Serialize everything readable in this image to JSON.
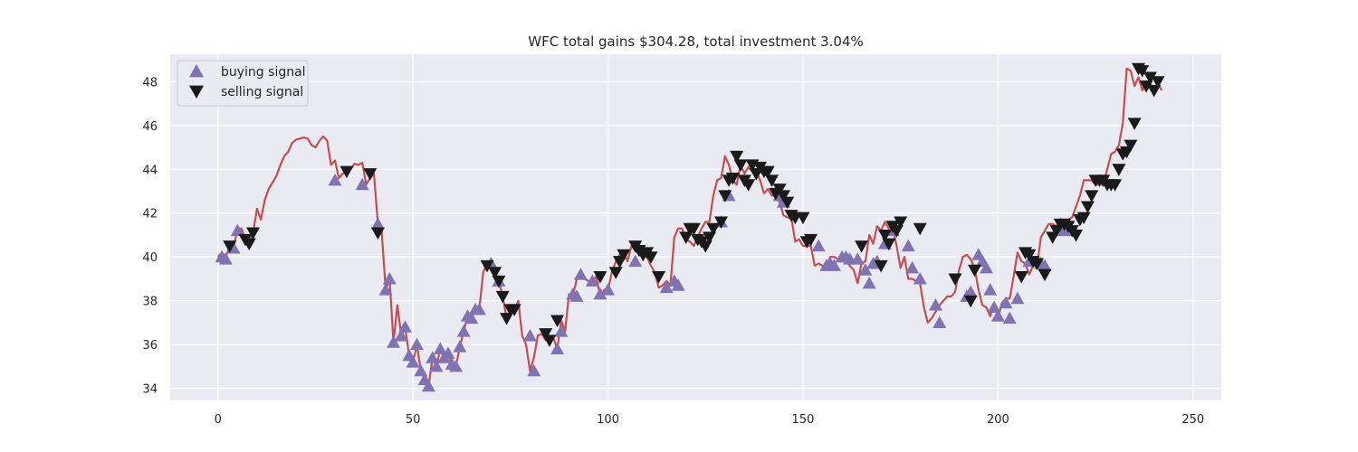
{
  "chart_data": {
    "type": "line",
    "title": "WFC total gains $304.28, total investment 3.04%",
    "xlabel": "",
    "ylabel": "",
    "xlim": [
      -12.25,
      257.25
    ],
    "ylim": [
      33.45,
      49.25
    ],
    "x_ticks": [
      0,
      50,
      100,
      150,
      200,
      250
    ],
    "y_ticks": [
      34,
      36,
      38,
      40,
      42,
      44,
      46,
      48
    ],
    "grid": true,
    "legend_position": "upper-left",
    "colors": {
      "background": "#eaeaf2",
      "line": "#c44e52",
      "buy": "#8172b2",
      "sell": "#1a1a1a",
      "grid": "#ffffff"
    },
    "close": [
      40.0,
      40.2,
      40.0,
      40.5,
      40.4,
      41.3,
      41.3,
      40.8,
      40.6,
      41.1,
      42.2,
      41.7,
      42.6,
      43.1,
      43.4,
      43.7,
      44.2,
      44.6,
      44.8,
      45.2,
      45.35,
      45.4,
      45.45,
      45.4,
      45.1,
      45.0,
      45.3,
      45.5,
      45.3,
      44.2,
      44.4,
      43.6,
      43.8,
      43.9,
      44.0,
      44.25,
      44.2,
      44.3,
      43.3,
      43.6,
      43.8,
      41.5,
      41.1,
      38.5,
      39.0,
      36.1,
      37.8,
      36.4,
      36.8,
      35.5,
      35.2,
      36.0,
      34.8,
      34.4,
      34.1,
      35.4,
      35.0,
      35.8,
      35.4,
      35.6,
      35.1,
      35.0,
      35.9,
      36.6,
      37.3,
      37.2,
      37.6,
      37.6,
      39.3,
      39.7,
      39.7,
      39.3,
      38.9,
      38.2,
      37.2,
      37.6,
      37.6,
      38.0,
      36.4,
      36.0,
      34.8,
      35.4,
      36.4,
      36.5,
      36.2,
      36.4,
      36.3,
      35.8,
      37.1,
      36.6,
      38.3,
      38.2,
      39.0,
      39.2,
      39.0,
      38.9,
      38.9,
      39.1,
      38.2,
      38.5,
      38.5,
      39.3,
      39.8,
      40.1,
      40.2,
      39.8,
      40.5,
      40.3,
      40.1,
      40.2,
      40.0,
      39.6,
      39.3,
      38.6,
      38.7,
      38.9,
      38.7,
      40.9,
      41.3,
      41.3,
      40.8,
      40.7,
      40.5,
      40.9,
      41.3,
      41.6,
      41.6,
      42.8,
      43.5,
      43.6,
      44.6,
      44.2,
      43.5,
      43.3,
      44.2,
      43.8,
      44.1,
      43.9,
      43.9,
      43.5,
      42.9,
      43.1,
      42.8,
      42.8,
      42.5,
      41.9,
      41.8,
      41.8,
      40.7,
      40.8,
      40.5,
      40.5,
      40.5,
      39.6,
      39.7,
      39.6,
      39.6,
      40.0,
      40.0,
      39.9,
      39.8,
      39.9,
      39.6,
      39.4,
      38.8,
      39.7,
      39.8,
      41.0,
      40.6,
      41.4,
      41.2,
      41.6,
      41.3,
      41.3,
      40.5,
      39.5,
      40.0,
      39.0,
      39.0,
      38.9,
      38.8,
      37.7,
      37.0,
      37.2,
      37.5,
      37.8,
      38.0,
      38.2,
      38.2,
      38.4,
      39.4,
      40.0,
      40.1,
      39.9,
      39.5,
      38.5,
      37.8,
      37.7,
      37.3,
      37.9,
      37.2,
      37.9,
      38.1,
      38.1,
      39.1,
      40.2,
      39.8,
      39.7,
      39.2,
      39.6,
      39.6,
      40.9,
      41.2,
      41.5,
      41.5,
      41.4,
      41.2,
      41.0,
      41.7,
      41.8,
      42.3,
      42.8,
      43.5,
      43.5,
      43.5,
      43.3,
      43.3,
      43.3,
      44.0,
      44.7,
      44.8,
      45.1,
      46.1,
      48.6,
      48.5,
      47.8,
      48.2,
      47.6,
      48.0,
      47.9,
      47.7,
      47.9,
      47.6
    ],
    "series": [
      {
        "name": "buying signal",
        "marker": "triangle-up",
        "x": [
          1,
          2,
          4,
          5,
          30,
          37,
          41,
          43,
          44,
          45,
          47,
          48,
          49,
          50,
          51,
          52,
          53,
          54,
          55,
          56,
          57,
          58,
          59,
          60,
          61,
          62,
          63,
          64,
          65,
          66,
          67,
          70,
          72,
          80,
          81,
          87,
          88,
          91,
          92,
          93,
          96,
          98,
          100,
          107,
          115,
          117,
          118,
          129,
          131,
          144,
          145,
          154,
          156,
          157,
          158,
          160,
          161,
          162,
          164,
          166,
          167,
          168,
          169,
          171,
          173,
          177,
          178,
          180,
          184,
          185,
          192,
          193,
          195,
          196,
          197,
          198,
          199,
          200,
          202,
          203,
          205,
          208,
          211,
          212,
          216,
          217
        ],
        "y": [
          40.0,
          39.9,
          40.4,
          41.2,
          43.5,
          43.3,
          41.5,
          38.5,
          39.0,
          36.1,
          36.4,
          36.8,
          35.5,
          35.2,
          36.0,
          34.8,
          34.4,
          34.1,
          35.4,
          35.0,
          35.8,
          35.4,
          35.6,
          35.1,
          35.0,
          35.9,
          36.6,
          37.3,
          37.2,
          37.6,
          37.6,
          39.7,
          38.9,
          36.4,
          34.8,
          35.8,
          36.6,
          38.3,
          38.2,
          39.2,
          38.9,
          38.3,
          38.5,
          39.8,
          38.6,
          38.9,
          38.7,
          41.6,
          42.8,
          42.8,
          42.5,
          40.5,
          39.6,
          39.7,
          39.6,
          40.0,
          40.0,
          39.9,
          39.9,
          39.4,
          38.8,
          39.7,
          39.8,
          40.6,
          41.2,
          40.5,
          39.5,
          39.0,
          37.8,
          37.0,
          38.2,
          38.4,
          40.1,
          39.8,
          39.5,
          38.5,
          37.7,
          37.3,
          37.9,
          37.2,
          38.1,
          39.8,
          39.7,
          39.6,
          41.5,
          41.2
        ]
      },
      {
        "name": "selling signal",
        "marker": "triangle-down",
        "x": [
          3,
          7,
          8,
          9,
          33,
          39,
          41,
          69,
          71,
          72,
          73,
          74,
          75,
          76,
          84,
          85,
          87,
          98,
          102,
          103,
          104,
          107,
          108,
          109,
          110,
          111,
          113,
          120,
          121,
          122,
          123,
          124,
          125,
          126,
          127,
          129,
          130,
          131,
          132,
          133,
          134,
          135,
          136,
          137,
          138,
          139,
          140,
          141,
          142,
          143,
          144,
          145,
          146,
          147,
          148,
          150,
          151,
          152,
          165,
          170,
          171,
          172,
          173,
          174,
          175,
          180,
          189,
          193,
          194,
          206,
          207,
          208,
          209,
          210,
          212,
          214,
          215,
          216,
          217,
          218,
          219,
          220,
          221,
          222,
          223,
          224,
          225,
          226,
          227,
          228,
          229,
          230,
          231,
          232,
          233,
          234,
          235,
          236,
          237,
          238,
          239,
          240,
          241
        ],
        "y": [
          40.5,
          40.8,
          40.6,
          41.1,
          43.9,
          43.8,
          41.1,
          39.6,
          39.3,
          38.9,
          38.2,
          37.2,
          37.6,
          37.6,
          36.5,
          36.2,
          37.1,
          39.1,
          39.3,
          39.8,
          40.1,
          40.5,
          40.3,
          40.1,
          40.2,
          40.0,
          39.1,
          40.9,
          41.3,
          41.3,
          40.8,
          40.7,
          40.5,
          40.9,
          41.3,
          41.6,
          42.8,
          43.5,
          43.6,
          44.6,
          44.2,
          43.5,
          43.3,
          44.2,
          43.8,
          44.1,
          43.9,
          43.9,
          43.5,
          42.9,
          43.1,
          42.8,
          42.5,
          41.9,
          41.8,
          41.8,
          40.7,
          40.8,
          40.5,
          39.6,
          41.0,
          40.6,
          41.4,
          41.2,
          41.6,
          41.3,
          39.0,
          38.0,
          39.4,
          39.1,
          40.2,
          40.1,
          39.8,
          39.7,
          39.2,
          40.9,
          41.2,
          41.5,
          41.5,
          41.4,
          41.2,
          41.0,
          41.7,
          41.8,
          42.3,
          42.8,
          43.5,
          43.5,
          43.5,
          43.3,
          43.3,
          43.3,
          44.0,
          44.7,
          44.8,
          45.1,
          46.1,
          48.6,
          48.5,
          47.8,
          48.2,
          47.6,
          48.0
        ]
      }
    ]
  }
}
